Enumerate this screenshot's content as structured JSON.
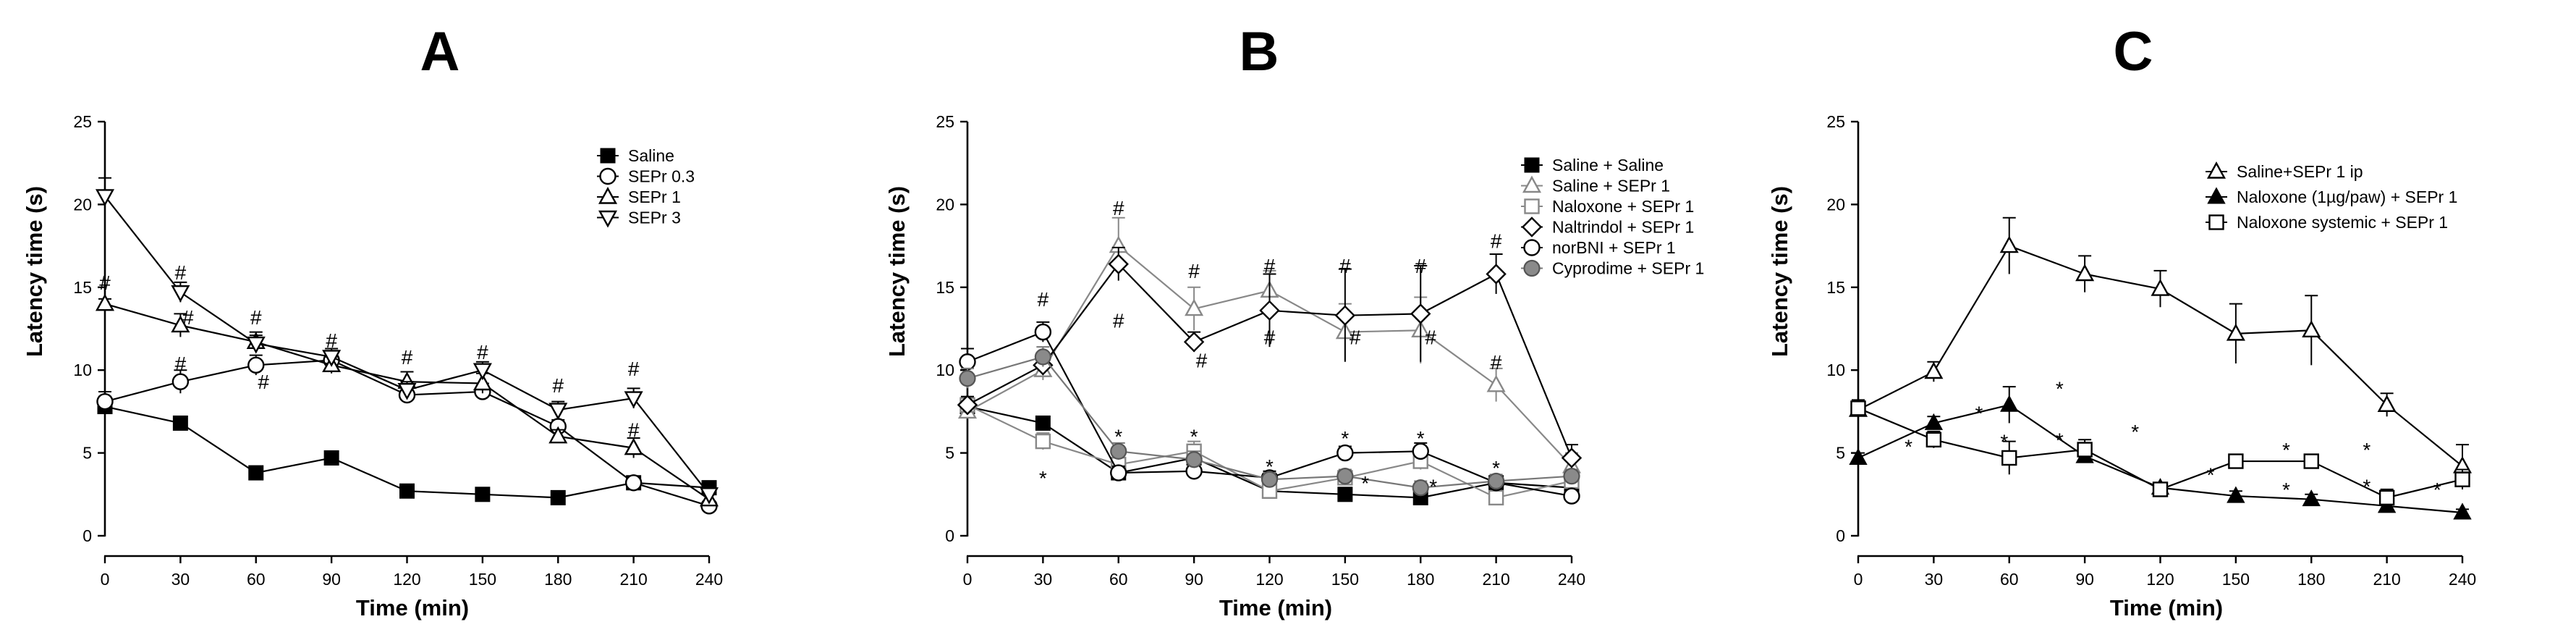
{
  "chart_data": [
    {
      "type": "line",
      "panel": "A",
      "xlabel": "Time (min)",
      "ylabel": "Latency time (s)",
      "x": [
        0,
        30,
        60,
        90,
        120,
        150,
        180,
        210,
        240
      ],
      "xlim": [
        0,
        240
      ],
      "ylim": [
        0,
        25
      ],
      "xticks": [
        0,
        30,
        60,
        90,
        120,
        150,
        180,
        210,
        240
      ],
      "yticks": [
        0,
        5,
        10,
        15,
        20,
        25
      ],
      "legend_position": "top-right",
      "series": [
        {
          "name": "Saline",
          "marker": "square-filled",
          "values": [
            7.8,
            6.8,
            3.8,
            4.7,
            2.7,
            2.5,
            2.3,
            3.2,
            2.9
          ],
          "errors": [
            0.6,
            0.3,
            0.3,
            0.3,
            0.2,
            0.2,
            0.2,
            0.3,
            0.3
          ]
        },
        {
          "name": "SEPr 0.3",
          "marker": "circle-open",
          "values": [
            8.1,
            9.3,
            10.3,
            10.6,
            8.5,
            8.7,
            6.6,
            3.2,
            1.8
          ],
          "errors": [
            0.6,
            0.7,
            0.6,
            0.5,
            0.4,
            0.5,
            0.4,
            0.3,
            0.3
          ]
        },
        {
          "name": "SEPr 1",
          "marker": "triangle-up-open",
          "values": [
            14.0,
            12.7,
            11.7,
            10.3,
            9.3,
            9.2,
            6.0,
            5.3,
            2.2
          ],
          "errors": [
            0.3,
            0.7,
            0.6,
            0.5,
            0.6,
            0.6,
            0.4,
            0.6,
            0.3
          ]
        },
        {
          "name": "SEPr 3",
          "marker": "triangle-down-open",
          "values": [
            20.5,
            14.7,
            11.6,
            10.8,
            8.8,
            10.0,
            7.6,
            8.3,
            2.5
          ],
          "errors": [
            1.1,
            0.6,
            0.5,
            0.5,
            0.5,
            0.5,
            0.5,
            0.6,
            0.3
          ]
        }
      ],
      "annotations": [
        {
          "text": "#",
          "x": 0,
          "y": 15.3
        },
        {
          "text": "#",
          "x": 30,
          "y": 15.9
        },
        {
          "text": "#",
          "x": 33,
          "y": 13.2
        },
        {
          "text": "#",
          "x": 30,
          "y": 10.4
        },
        {
          "text": "#",
          "x": 60,
          "y": 13.2
        },
        {
          "text": "#",
          "x": 63,
          "y": 9.3
        },
        {
          "text": "#",
          "x": 90,
          "y": 11.8
        },
        {
          "text": "#",
          "x": 120,
          "y": 10.8
        },
        {
          "text": "#",
          "x": 150,
          "y": 11.1
        },
        {
          "text": "#",
          "x": 180,
          "y": 9.1
        },
        {
          "text": "#",
          "x": 210,
          "y": 10.1
        },
        {
          "text": "#",
          "x": 210,
          "y": 6.4
        }
      ]
    },
    {
      "type": "line",
      "panel": "B",
      "xlabel": "Time (min)",
      "ylabel": "Latency time (s)",
      "x": [
        0,
        30,
        60,
        90,
        120,
        150,
        180,
        210,
        240
      ],
      "xlim": [
        0,
        240
      ],
      "ylim": [
        0,
        25
      ],
      "xticks": [
        0,
        30,
        60,
        90,
        120,
        150,
        180,
        210,
        240
      ],
      "yticks": [
        0,
        5,
        10,
        15,
        20,
        25
      ],
      "legend_position": "top-right",
      "series": [
        {
          "name": "Saline + Saline",
          "marker": "square-filled",
          "color": "#000000",
          "values": [
            7.8,
            6.8,
            3.8,
            4.7,
            2.7,
            2.5,
            2.3,
            3.2,
            2.9
          ],
          "errors": [
            0.5,
            0.3,
            0.3,
            0.3,
            0.2,
            0.2,
            0.2,
            0.3,
            0.3
          ]
        },
        {
          "name": "Saline + SEPr 1",
          "marker": "triangle-up-open",
          "color": "#888888",
          "values": [
            7.5,
            10.0,
            17.5,
            13.7,
            14.8,
            12.3,
            12.4,
            9.1,
            4.2
          ],
          "errors": [
            0.4,
            0.6,
            1.7,
            1.3,
            1.2,
            1.7,
            2.0,
            1.0,
            0.8
          ]
        },
        {
          "name": "Naloxone + SEPr 1",
          "marker": "square-open",
          "color": "#888888",
          "values": [
            7.9,
            5.7,
            4.3,
            5.1,
            2.7,
            3.5,
            4.5,
            2.3,
            3.3
          ],
          "errors": [
            0.5,
            0.5,
            0.6,
            0.6,
            0.4,
            0.4,
            0.5,
            0.4,
            0.5
          ]
        },
        {
          "name": "Naltrindol + SEPr 1",
          "marker": "diamond-open",
          "color": "#000000",
          "values": [
            7.9,
            10.3,
            16.4,
            11.7,
            13.6,
            13.3,
            13.4,
            15.8,
            4.7
          ],
          "errors": [
            0.5,
            0.6,
            1.0,
            0.6,
            2.2,
            2.8,
            2.9,
            1.2,
            0.8
          ]
        },
        {
          "name": "norBNI + SEPr 1",
          "marker": "circle-open",
          "color": "#000000",
          "values": [
            10.5,
            12.3,
            3.8,
            3.9,
            3.5,
            5.0,
            5.1,
            3.2,
            2.4
          ],
          "errors": [
            0.8,
            0.6,
            0.4,
            0.5,
            0.4,
            0.4,
            0.5,
            0.4,
            0.3
          ]
        },
        {
          "name": "Cyprodime + SEPr 1",
          "marker": "circle-filled-grey",
          "color": "#777777",
          "values": [
            9.5,
            10.8,
            5.1,
            4.6,
            3.4,
            3.6,
            2.9,
            3.3,
            3.6
          ],
          "errors": [
            0.6,
            0.6,
            0.5,
            0.5,
            0.4,
            0.4,
            0.4,
            0.4,
            0.4
          ]
        }
      ],
      "annotations": [
        {
          "text": "#",
          "x": 30,
          "y": 14.3
        },
        {
          "text": "*",
          "x": 30,
          "y": 3.5
        },
        {
          "text": "#",
          "x": 60,
          "y": 19.8
        },
        {
          "text": "#",
          "x": 60,
          "y": 13.0
        },
        {
          "text": "*",
          "x": 60,
          "y": 6.0
        },
        {
          "text": "#",
          "x": 90,
          "y": 16.0
        },
        {
          "text": "#",
          "x": 93,
          "y": 10.6
        },
        {
          "text": "*",
          "x": 90,
          "y": 6.0
        },
        {
          "text": "#",
          "x": 120,
          "y": 16.3
        },
        {
          "text": "#",
          "x": 120,
          "y": 12.0
        },
        {
          "text": "*",
          "x": 120,
          "y": 4.2
        },
        {
          "text": "#",
          "x": 150,
          "y": 16.3
        },
        {
          "text": "#",
          "x": 154,
          "y": 12.0
        },
        {
          "text": "*",
          "x": 150,
          "y": 5.9
        },
        {
          "text": "*",
          "x": 158,
          "y": 3.2
        },
        {
          "text": "#",
          "x": 180,
          "y": 16.3
        },
        {
          "text": "#",
          "x": 184,
          "y": 12.0
        },
        {
          "text": "*",
          "x": 180,
          "y": 5.9
        },
        {
          "text": "*",
          "x": 185,
          "y": 3.0
        },
        {
          "text": "#",
          "x": 210,
          "y": 17.8
        },
        {
          "text": "#",
          "x": 210,
          "y": 10.5
        },
        {
          "text": "*",
          "x": 210,
          "y": 4.1
        }
      ]
    },
    {
      "type": "line",
      "panel": "C",
      "xlabel": "Time (min)",
      "ylabel": "Latency time (s)",
      "x": [
        0,
        30,
        60,
        90,
        120,
        150,
        180,
        210,
        240
      ],
      "xlim": [
        0,
        240
      ],
      "ylim": [
        0,
        25
      ],
      "xticks": [
        0,
        30,
        60,
        90,
        120,
        150,
        180,
        210,
        240
      ],
      "yticks": [
        0,
        5,
        10,
        15,
        20,
        25
      ],
      "legend_position": "top-right",
      "series": [
        {
          "name": "Saline+SEPr 1 ip",
          "marker": "triangle-up-open",
          "values": [
            7.6,
            9.9,
            17.5,
            15.8,
            14.9,
            12.2,
            12.4,
            7.9,
            4.2
          ],
          "errors": [
            0.4,
            0.6,
            1.7,
            1.1,
            1.1,
            1.8,
            2.1,
            0.7,
            1.3
          ]
        },
        {
          "name": "Naloxone (1µg/paw) + SEPr 1",
          "marker": "triangle-up-filled",
          "values": [
            4.7,
            6.8,
            7.9,
            4.8,
            2.9,
            2.4,
            2.2,
            1.8,
            1.4
          ],
          "errors": [
            0.3,
            0.4,
            1.1,
            0.4,
            0.3,
            0.3,
            0.3,
            0.3,
            0.2
          ]
        },
        {
          "name": "Naloxone systemic + SEPr 1",
          "marker": "square-open",
          "values": [
            7.7,
            5.8,
            4.7,
            5.2,
            2.8,
            4.5,
            4.5,
            2.3,
            3.4
          ],
          "errors": [
            0.5,
            0.5,
            1.0,
            0.6,
            0.3,
            0.4,
            0.4,
            0.5,
            0.6
          ]
        }
      ],
      "annotations": [
        {
          "text": "*",
          "x": 20,
          "y": 5.4
        },
        {
          "text": "*",
          "x": 48,
          "y": 7.4
        },
        {
          "text": "*",
          "x": 58,
          "y": 5.7
        },
        {
          "text": "*",
          "x": 80,
          "y": 8.9
        },
        {
          "text": "*",
          "x": 80,
          "y": 5.8
        },
        {
          "text": "*",
          "x": 110,
          "y": 6.3
        },
        {
          "text": "*",
          "x": 140,
          "y": 3.7
        },
        {
          "text": "*",
          "x": 170,
          "y": 5.2
        },
        {
          "text": "*",
          "x": 170,
          "y": 2.8
        },
        {
          "text": "*",
          "x": 202,
          "y": 5.2
        },
        {
          "text": "*",
          "x": 202,
          "y": 3.0
        },
        {
          "text": "*",
          "x": 230,
          "y": 2.8
        }
      ]
    }
  ]
}
